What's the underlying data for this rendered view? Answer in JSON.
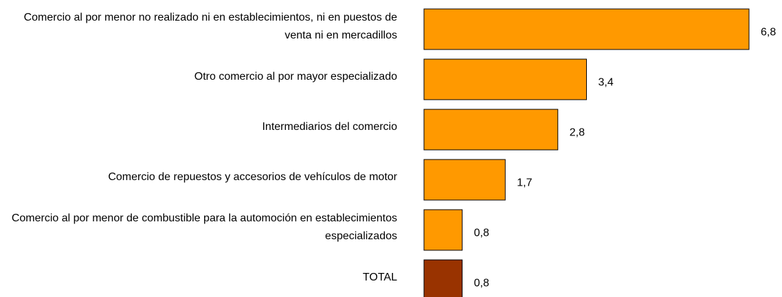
{
  "chart_data": {
    "type": "bar",
    "orientation": "horizontal",
    "categories": [
      "Comercio al por menor no realizado ni en establecimientos, ni en puestos de venta ni en mercadillos",
      "Otro comercio al por mayor especializado",
      "Intermediarios del comercio",
      "Comercio de repuestos y accesorios de vehículos de motor",
      "Comercio al por menor de combustible para la automoción en establecimientos especializados",
      "TOTAL"
    ],
    "values": [
      6.8,
      3.4,
      2.8,
      1.7,
      0.8,
      0.8
    ],
    "value_labels": [
      "6,8",
      "3,4",
      "2,8",
      "1,7",
      "0,8",
      "0,8"
    ],
    "colors": [
      "#ff9900",
      "#ff9900",
      "#ff9900",
      "#ff9900",
      "#ff9900",
      "#993300"
    ],
    "xlim": [
      0,
      6.8
    ]
  }
}
